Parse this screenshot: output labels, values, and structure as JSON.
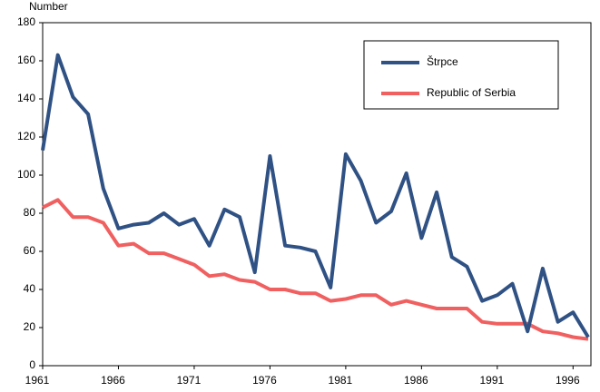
{
  "chart_data": {
    "type": "line",
    "y_label": "Number",
    "x": [
      1961,
      1962,
      1963,
      1964,
      1965,
      1966,
      1967,
      1968,
      1969,
      1970,
      1971,
      1972,
      1973,
      1974,
      1975,
      1976,
      1977,
      1978,
      1979,
      1980,
      1981,
      1982,
      1983,
      1984,
      1985,
      1986,
      1987,
      1988,
      1989,
      1990,
      1991,
      1992,
      1993,
      1994,
      1995,
      1996,
      1997
    ],
    "series": [
      {
        "name": "Štrpce",
        "color": "#2f5184",
        "values": [
          113,
          163,
          141,
          132,
          93,
          72,
          74,
          75,
          80,
          74,
          77,
          63,
          82,
          78,
          49,
          110,
          63,
          62,
          60,
          41,
          111,
          97,
          75,
          81,
          101,
          67,
          91,
          57,
          52,
          34,
          37,
          43,
          18,
          51,
          23,
          28,
          15
        ]
      },
      {
        "name": "Republic of Serbia",
        "color": "#f06060",
        "values": [
          83,
          87,
          78,
          78,
          75,
          63,
          64,
          59,
          59,
          56,
          53,
          47,
          48,
          45,
          44,
          40,
          40,
          38,
          38,
          34,
          35,
          37,
          37,
          32,
          34,
          32,
          30,
          30,
          30,
          23,
          22,
          22,
          22,
          18,
          17,
          15,
          14
        ]
      }
    ],
    "xlim": [
      1961,
      1997
    ],
    "xticks": [
      1961,
      1966,
      1971,
      1976,
      1981,
      1986,
      1991,
      1996
    ],
    "ylim": [
      0,
      180
    ],
    "yticks": [
      0,
      20,
      40,
      60,
      80,
      100,
      120,
      140,
      160,
      180
    ],
    "grid": false
  }
}
